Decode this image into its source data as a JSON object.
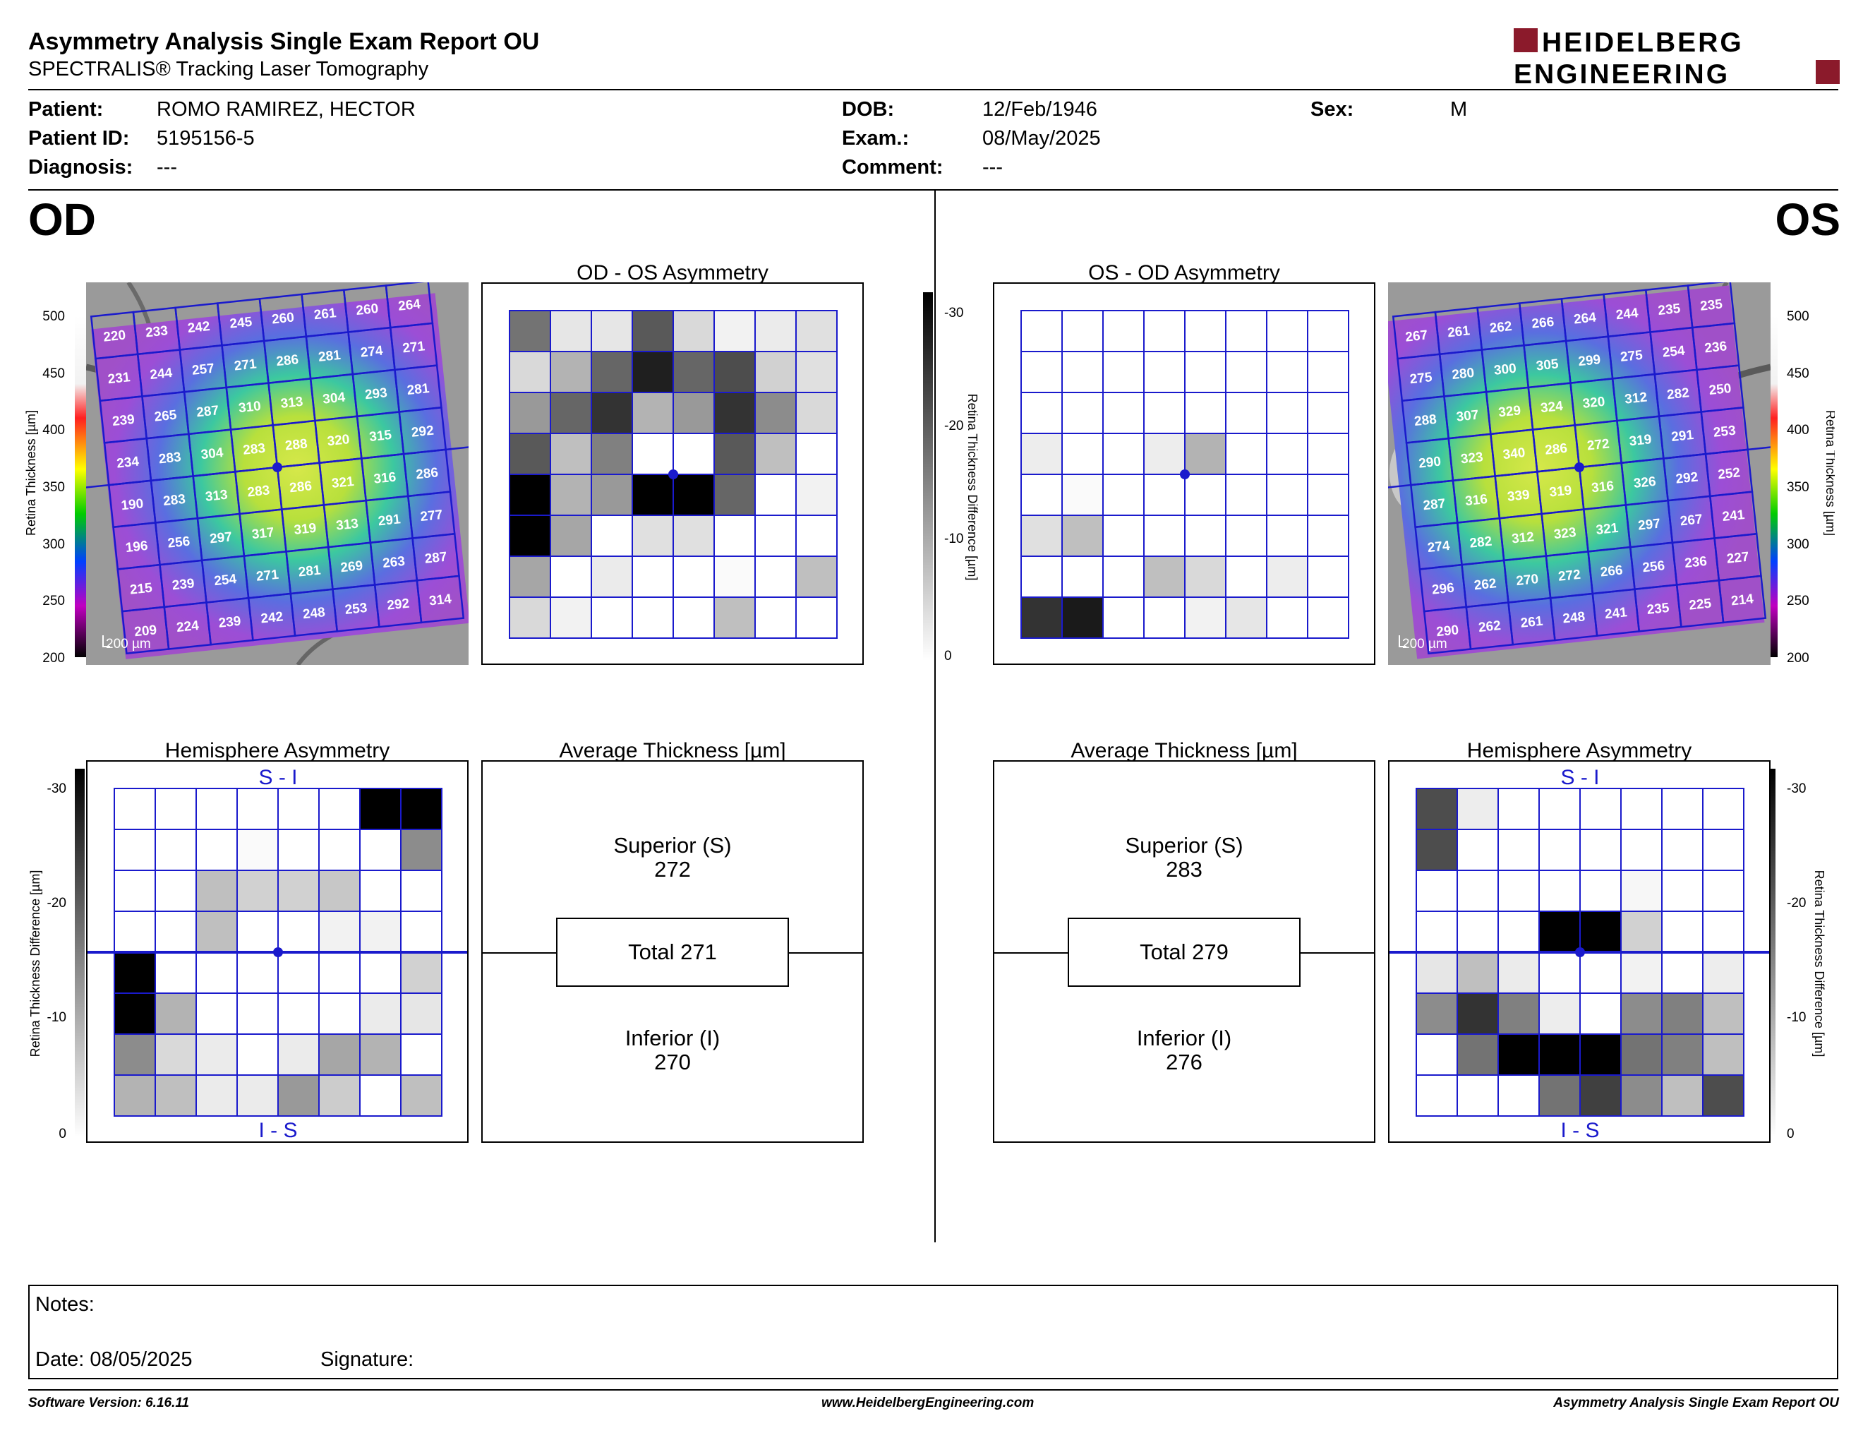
{
  "header": {
    "title": "Asymmetry Analysis Single Exam Report OU",
    "subtitle": "SPECTRALIS® Tracking Laser Tomography",
    "logo_line1": "HEIDELBERG",
    "logo_line2": "ENGINEERING",
    "logo_color": "#8b1a2b"
  },
  "patient": {
    "patient_label": "Patient:",
    "patient_value": "ROMO RAMIREZ, HECTOR",
    "id_label": "Patient ID:",
    "id_value": "5195156-5",
    "diagnosis_label": "Diagnosis:",
    "diagnosis_value": "---",
    "dob_label": "DOB:",
    "dob_value": "12/Feb/1946",
    "exam_label": "Exam.:",
    "exam_value": "08/May/2025",
    "comment_label": "Comment:",
    "comment_value": "---",
    "sex_label": "Sex:",
    "sex_value": "M"
  },
  "eyes": {
    "od": "OD",
    "os": "OS"
  },
  "titles": {
    "od_os_asym": "OD - OS Asymmetry",
    "os_od_asym": "OS - OD Asymmetry",
    "hemi": "Hemisphere Asymmetry",
    "avg": "Average Thickness [µm]"
  },
  "scales": {
    "retina_label": "Retina  Thickness [µm]",
    "retina_ticks": [
      "500",
      "450",
      "400",
      "350",
      "300",
      "250",
      "200"
    ],
    "diff_label": "Retina Thickness Difference [µm]",
    "diff_ticks": [
      "-30",
      "-20",
      "-10",
      "0"
    ],
    "scale_bar": "200 µm",
    "hemi_top": "S - I",
    "hemi_bottom": "I - S",
    "grid_color": "#1a1acc"
  },
  "od_thickness": [
    [
      "220",
      "233",
      "242",
      "245",
      "260",
      "261",
      "260",
      "264"
    ],
    [
      "231",
      "244",
      "257",
      "271",
      "286",
      "281",
      "274",
      "271"
    ],
    [
      "239",
      "265",
      "287",
      "310",
      "313",
      "304",
      "293",
      "281"
    ],
    [
      "234",
      "283",
      "304",
      "283",
      "288",
      "320",
      "315",
      "292"
    ],
    [
      "190",
      "283",
      "313",
      "283",
      "286",
      "321",
      "316",
      "286"
    ],
    [
      "196",
      "256",
      "297",
      "317",
      "319",
      "313",
      "291",
      "277"
    ],
    [
      "215",
      "239",
      "254",
      "271",
      "281",
      "269",
      "263",
      "287"
    ],
    [
      "209",
      "224",
      "239",
      "242",
      "248",
      "253",
      "292",
      "314"
    ]
  ],
  "os_thickness": [
    [
      "267",
      "261",
      "262",
      "266",
      "264",
      "244",
      "235",
      "235"
    ],
    [
      "275",
      "280",
      "300",
      "305",
      "299",
      "275",
      "254",
      "236"
    ],
    [
      "288",
      "307",
      "329",
      "324",
      "320",
      "312",
      "282",
      "250"
    ],
    [
      "290",
      "323",
      "340",
      "286",
      "272",
      "319",
      "291",
      "253"
    ],
    [
      "287",
      "316",
      "339",
      "319",
      "316",
      "326",
      "292",
      "252"
    ],
    [
      "274",
      "282",
      "312",
      "323",
      "321",
      "297",
      "267",
      "241"
    ],
    [
      "296",
      "262",
      "270",
      "272",
      "266",
      "256",
      "236",
      "227"
    ],
    [
      "290",
      "262",
      "261",
      "248",
      "241",
      "235",
      "225",
      "214"
    ]
  ],
  "od_os_asym_gray": [
    [
      0.45,
      0.9,
      0.9,
      0.35,
      0.85,
      0.95,
      0.92,
      0.88
    ],
    [
      0.85,
      0.7,
      0.4,
      0.12,
      0.4,
      0.3,
      0.82,
      0.88
    ],
    [
      0.6,
      0.4,
      0.2,
      0.7,
      0.6,
      0.2,
      0.55,
      0.85
    ],
    [
      0.35,
      0.75,
      0.5,
      1,
      1,
      0.35,
      0.75,
      1
    ],
    [
      0,
      0.7,
      0.6,
      0,
      0,
      0.4,
      1,
      0.95
    ],
    [
      0,
      0.65,
      1,
      0.88,
      0.88,
      1,
      1,
      1
    ],
    [
      0.65,
      1,
      0.92,
      1,
      1,
      0.98,
      1,
      0.75
    ],
    [
      0.85,
      0.95,
      1,
      1,
      1,
      0.75,
      1,
      1
    ]
  ],
  "os_od_asym_gray": [
    [
      1,
      1,
      1,
      1,
      1,
      1,
      1,
      1
    ],
    [
      1,
      1,
      1,
      1,
      1,
      1,
      1,
      1
    ],
    [
      1,
      1,
      1,
      1,
      1,
      1,
      1,
      1
    ],
    [
      0.93,
      1,
      1,
      0.93,
      0.7,
      1,
      1,
      1
    ],
    [
      1,
      0.98,
      1,
      1,
      1,
      1,
      1,
      1
    ],
    [
      0.88,
      0.75,
      1,
      1,
      1,
      1,
      1,
      1
    ],
    [
      1,
      1,
      1,
      0.75,
      0.85,
      1,
      0.93,
      1
    ],
    [
      0.2,
      0.1,
      1,
      1,
      0.95,
      0.9,
      1,
      1
    ]
  ],
  "od_hemi_gray": [
    [
      1,
      1,
      1,
      1,
      1,
      1,
      0,
      0
    ],
    [
      1,
      1,
      1,
      0.98,
      1,
      1,
      1,
      0.55
    ],
    [
      1,
      1,
      0.75,
      0.82,
      0.82,
      0.78,
      1,
      1
    ],
    [
      1,
      1,
      0.75,
      1,
      1,
      0.95,
      0.95,
      1
    ],
    [
      0,
      1,
      1,
      1,
      1,
      1,
      1,
      0.82
    ],
    [
      0,
      0.7,
      1,
      1,
      1,
      1,
      0.92,
      0.9
    ],
    [
      0.55,
      0.85,
      0.92,
      1,
      0.92,
      0.65,
      0.7,
      1
    ],
    [
      0.7,
      0.75,
      0.92,
      0.92,
      0.6,
      0.8,
      1,
      0.75
    ]
  ],
  "os_hemi_gray": [
    [
      0.3,
      0.93,
      1,
      1,
      1,
      1,
      1,
      1
    ],
    [
      0.3,
      1,
      1,
      1,
      1,
      1,
      1,
      1
    ],
    [
      1,
      1,
      1,
      1,
      1,
      0.97,
      1,
      1
    ],
    [
      1,
      1,
      1,
      0,
      0,
      0.82,
      1,
      1
    ],
    [
      0.9,
      0.75,
      0.92,
      1,
      1,
      0.95,
      1,
      0.93
    ],
    [
      0.55,
      0.2,
      0.5,
      0.93,
      1,
      0.55,
      0.5,
      0.75
    ],
    [
      1,
      0.45,
      0,
      0,
      0,
      0.45,
      0.5,
      0.75
    ],
    [
      1,
      1,
      1,
      0.45,
      0.25,
      0.55,
      0.75,
      0.3
    ]
  ],
  "od_avg": {
    "superior_label": "Superior (S)",
    "superior_value": "272",
    "total": "Total 271",
    "inferior_label": "Inferior (I)",
    "inferior_value": "270"
  },
  "os_avg": {
    "superior_label": "Superior (S)",
    "superior_value": "283",
    "total": "Total 279",
    "inferior_label": "Inferior (I)",
    "inferior_value": "276"
  },
  "notes": {
    "notes_label": "Notes:",
    "date_label": "Date: 08/05/2025",
    "signature_label": "Signature:"
  },
  "footer": {
    "version": "Software Version: 6.16.11",
    "website": "www.HeidelbergEngineering.com",
    "report": "Asymmetry Analysis Single Exam Report OU"
  }
}
